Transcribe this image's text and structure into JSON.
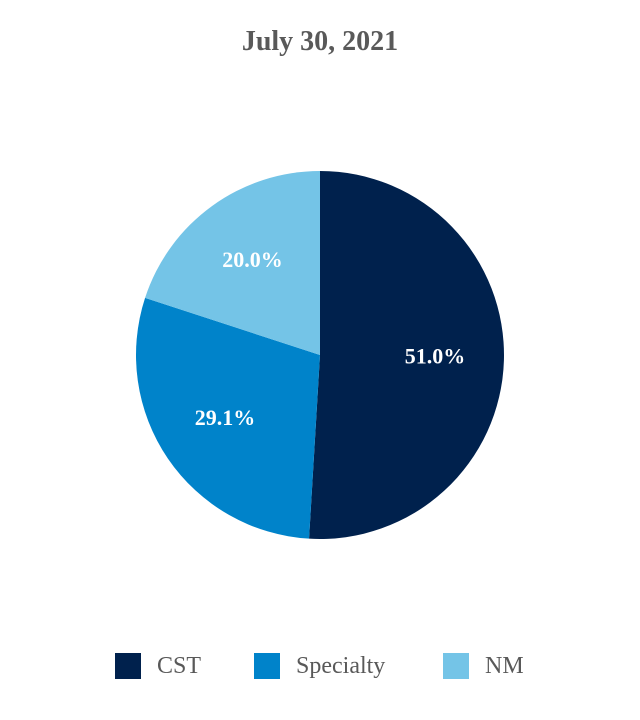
{
  "chart_data": {
    "type": "pie",
    "title": "July 30, 2021",
    "series": [
      {
        "name": "CST",
        "value": 51.0,
        "label": "51.0%",
        "color": "#00214D"
      },
      {
        "name": "Specialty",
        "value": 29.1,
        "label": "29.1%",
        "color": "#0083CA"
      },
      {
        "name": "NM",
        "value": 20.0,
        "label": "20.0%",
        "color": "#74C4E7"
      }
    ],
    "start_angle": "12 o'clock",
    "direction": "clockwise",
    "legend_position": "bottom"
  }
}
